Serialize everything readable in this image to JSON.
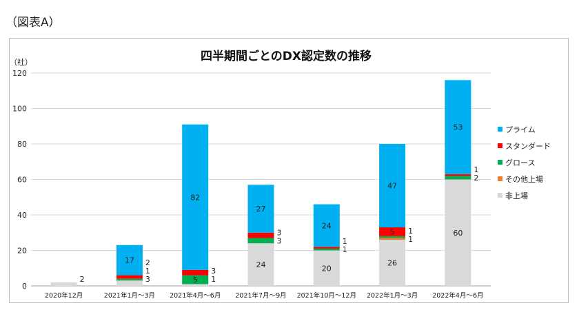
{
  "figure_label": "（図表A）",
  "chart_data": {
    "type": "bar",
    "stacked": true,
    "title": "四半期間ごとのDX認定数の推移",
    "ylabel": "（社）",
    "xlabel": "",
    "ylim": [
      0,
      120
    ],
    "yticks": [
      0,
      20,
      40,
      60,
      80,
      100,
      120
    ],
    "grid": true,
    "legend_position": "right",
    "categories": [
      "2020年12月",
      "2021年1月～3月",
      "2021年4月～6月",
      "2021年7月～9月",
      "2021年10月～12月",
      "2022年1月～3月",
      "2022年4月～6月"
    ],
    "series": [
      {
        "name": "非上場",
        "color": "#d9d9d9",
        "values": [
          2,
          3,
          1,
          24,
          20,
          26,
          60
        ]
      },
      {
        "name": "その他上場",
        "color": "#ed7d31",
        "values": [
          0,
          0,
          0,
          0,
          0,
          1,
          0
        ]
      },
      {
        "name": "グロース",
        "color": "#00b050",
        "values": [
          0,
          1,
          5,
          3,
          1,
          1,
          2
        ]
      },
      {
        "name": "スタンダード",
        "color": "#ff0000",
        "values": [
          0,
          2,
          3,
          3,
          1,
          5,
          1
        ]
      },
      {
        "name": "プライム",
        "color": "#00b0f0",
        "values": [
          0,
          17,
          82,
          27,
          24,
          47,
          53
        ]
      }
    ],
    "legend_order": [
      "プライム",
      "スタンダード",
      "グロース",
      "その他上場",
      "非上場"
    ]
  }
}
